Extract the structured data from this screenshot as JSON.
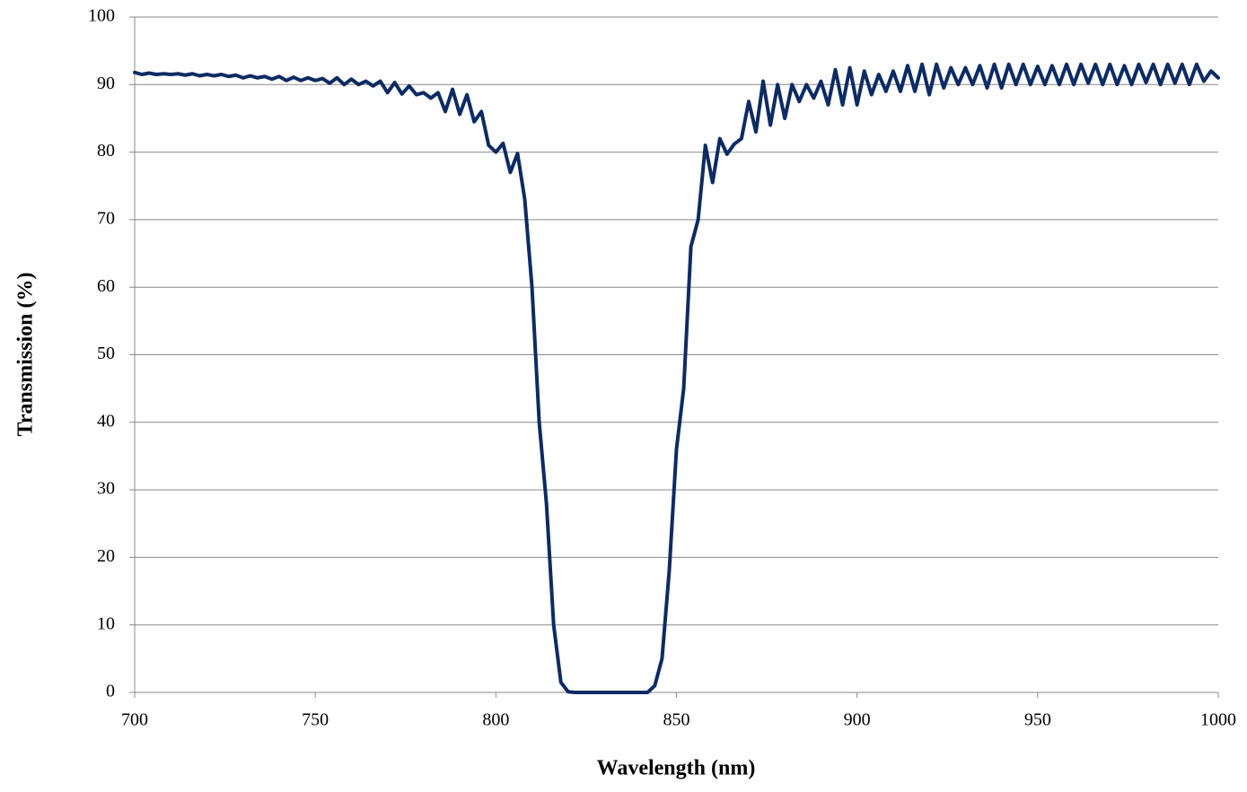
{
  "chart_data": {
    "type": "line",
    "xlabel": "Wavelength (nm)",
    "ylabel": "Transmission (%)",
    "x": [
      700,
      702,
      704,
      706,
      708,
      710,
      712,
      714,
      716,
      718,
      720,
      722,
      724,
      726,
      728,
      730,
      732,
      734,
      736,
      738,
      740,
      742,
      744,
      746,
      748,
      750,
      752,
      754,
      756,
      758,
      760,
      762,
      764,
      766,
      768,
      770,
      772,
      774,
      776,
      778,
      780,
      782,
      784,
      786,
      788,
      790,
      792,
      794,
      796,
      798,
      800,
      802,
      804,
      806,
      808,
      810,
      812,
      814,
      816,
      818,
      820,
      822,
      824,
      826,
      828,
      830,
      832,
      834,
      836,
      838,
      840,
      842,
      844,
      846,
      848,
      850,
      852,
      854,
      856,
      858,
      860,
      862,
      864,
      866,
      868,
      870,
      872,
      874,
      876,
      878,
      880,
      882,
      884,
      886,
      888,
      890,
      892,
      894,
      896,
      898,
      900,
      902,
      904,
      906,
      908,
      910,
      912,
      914,
      916,
      918,
      920,
      922,
      924,
      926,
      928,
      930,
      932,
      934,
      936,
      938,
      940,
      942,
      944,
      946,
      948,
      950,
      952,
      954,
      956,
      958,
      960,
      962,
      964,
      966,
      968,
      970,
      972,
      974,
      976,
      978,
      980,
      982,
      984,
      986,
      988,
      990,
      992,
      994,
      996,
      998,
      1000
    ],
    "series": [
      {
        "color": "#0d2b63",
        "values": [
          91.8,
          91.5,
          91.7,
          91.5,
          91.6,
          91.5,
          91.6,
          91.4,
          91.6,
          91.3,
          91.5,
          91.3,
          91.5,
          91.2,
          91.4,
          91.0,
          91.3,
          91.0,
          91.2,
          90.8,
          91.2,
          90.6,
          91.1,
          90.6,
          91.0,
          90.6,
          90.9,
          90.2,
          91.0,
          90.0,
          90.8,
          90.0,
          90.5,
          89.8,
          90.5,
          88.8,
          90.3,
          88.6,
          89.8,
          88.5,
          88.8,
          88.0,
          88.8,
          86.0,
          89.3,
          85.6,
          88.5,
          84.5,
          86.0,
          81.0,
          80.0,
          81.3,
          77.0,
          79.8,
          73,
          60,
          40,
          28,
          10,
          1.5,
          0.1,
          0,
          0,
          0,
          0,
          0,
          0,
          0,
          0,
          0,
          0,
          0,
          1,
          5,
          18,
          36,
          45,
          66,
          70,
          81,
          75.5,
          82,
          79.7,
          81.2,
          82,
          87.5,
          83,
          90.5,
          84,
          90,
          85,
          90,
          87.5,
          90,
          88,
          90.5,
          87,
          92.2,
          87,
          92.5,
          87,
          92,
          88.5,
          91.5,
          89,
          92,
          89,
          92.8,
          89,
          93,
          88.5,
          93,
          89.5,
          92.5,
          90,
          92.5,
          90,
          92.8,
          89.5,
          93,
          89.5,
          93,
          90,
          93,
          90,
          92.7,
          90,
          92.8,
          90,
          93,
          90,
          93,
          90.2,
          93,
          90,
          93,
          90,
          92.8,
          90,
          93,
          90.3,
          93,
          90,
          93,
          90.2,
          93,
          90,
          93,
          90.5,
          92,
          91
        ]
      }
    ],
    "xlim": [
      700,
      1000
    ],
    "xticks": [
      700,
      750,
      800,
      850,
      900,
      950,
      1000
    ],
    "ylim": [
      0,
      100
    ],
    "yticks": [
      0,
      10,
      20,
      30,
      40,
      50,
      60,
      70,
      80,
      90,
      100
    ],
    "grid": true
  }
}
